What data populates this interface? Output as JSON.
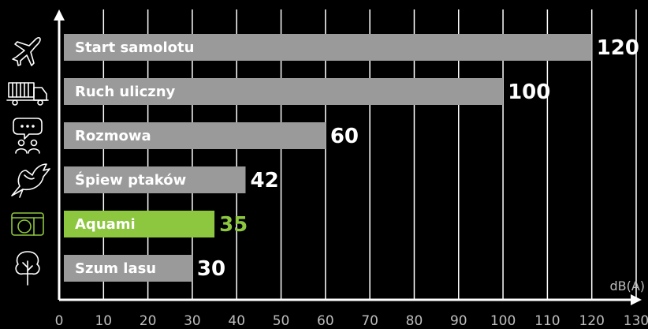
{
  "chart_data": {
    "type": "bar",
    "orientation": "horizontal",
    "categories": [
      "Start samolotu",
      "Ruch uliczny",
      "Rozmowa",
      "Śpiew ptaków",
      "Aquami",
      "Szum lasu"
    ],
    "values": [
      120,
      100,
      60,
      42,
      35,
      30
    ],
    "value_labels": [
      "120",
      "100",
      "60",
      "42",
      "35",
      "30"
    ],
    "icons": [
      "airplane-icon",
      "truck-icon",
      "conversation-icon",
      "bird-icon",
      "aquami-device-icon",
      "tree-icon"
    ],
    "highlight_index": 4,
    "xlabel": "dB(A)",
    "xlim": [
      0,
      130
    ],
    "x_ticks": [
      "0",
      "10",
      "20",
      "30",
      "40",
      "50",
      "60",
      "70",
      "80",
      "90",
      "100",
      "110",
      "120",
      "130"
    ],
    "grid": "vertical",
    "colors": {
      "background": "#000000",
      "bar": "#9a9a9a",
      "highlight": "#8dc63f",
      "text": "#ffffff",
      "axis_text": "#bdbdbd"
    }
  }
}
